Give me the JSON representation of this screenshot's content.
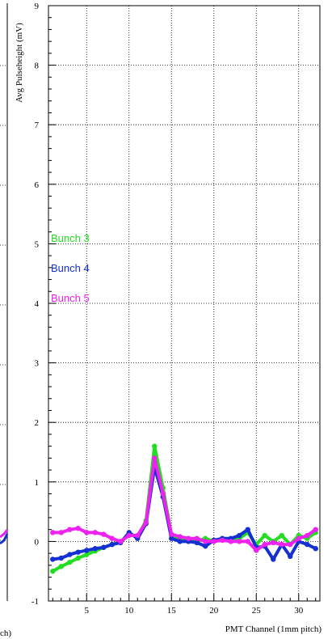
{
  "chart_data": {
    "type": "line",
    "title": "",
    "xlabel": "PMT Channel (1mm pitch)",
    "ylabel": "Avg Pulseheight (mV)",
    "left_panel_xlabel_fragment": "ch)",
    "xlim": [
      0.5,
      32.5
    ],
    "ylim": [
      -1,
      9
    ],
    "x_ticks": [
      5,
      10,
      15,
      20,
      25,
      30
    ],
    "y_ticks": [
      -1,
      0,
      1,
      2,
      3,
      4,
      5,
      6,
      7,
      8,
      9
    ],
    "grid": true,
    "legend_position": "middle-left",
    "x": [
      1,
      2,
      3,
      4,
      5,
      6,
      7,
      8,
      9,
      10,
      11,
      12,
      13,
      14,
      15,
      16,
      17,
      18,
      19,
      20,
      21,
      22,
      23,
      24,
      25,
      26,
      27,
      28,
      29,
      30,
      31,
      32
    ],
    "series": [
      {
        "name": "Bunch 3",
        "color": "#22dd22",
        "values": [
          -0.5,
          -0.42,
          -0.35,
          -0.28,
          -0.22,
          -0.16,
          -0.1,
          -0.05,
          0.0,
          0.12,
          0.08,
          0.35,
          1.6,
          0.9,
          0.1,
          0.05,
          0.05,
          0.0,
          0.05,
          0.0,
          0.05,
          0.02,
          0.05,
          0.15,
          -0.05,
          0.1,
          0.0,
          0.1,
          -0.05,
          0.1,
          0.05,
          0.15
        ]
      },
      {
        "name": "Bunch 4",
        "color": "#1530d0",
        "values": [
          -0.3,
          -0.28,
          -0.22,
          -0.18,
          -0.15,
          -0.12,
          -0.1,
          -0.05,
          -0.02,
          0.15,
          0.05,
          0.3,
          1.25,
          0.75,
          0.05,
          0.0,
          0.0,
          -0.02,
          -0.08,
          0.02,
          0.05,
          0.05,
          0.1,
          0.2,
          -0.1,
          -0.08,
          -0.3,
          -0.05,
          -0.25,
          0.0,
          -0.05,
          -0.12
        ]
      },
      {
        "name": "Bunch 5",
        "color": "#ee22ee",
        "values": [
          0.15,
          0.15,
          0.2,
          0.22,
          0.15,
          0.15,
          0.12,
          0.05,
          0.0,
          0.1,
          0.1,
          0.32,
          1.4,
          0.8,
          0.12,
          0.08,
          0.05,
          0.05,
          0.0,
          0.0,
          0.02,
          0.0,
          0.0,
          0.0,
          -0.15,
          -0.05,
          -0.02,
          -0.05,
          -0.05,
          0.05,
          0.1,
          0.2
        ]
      }
    ]
  }
}
